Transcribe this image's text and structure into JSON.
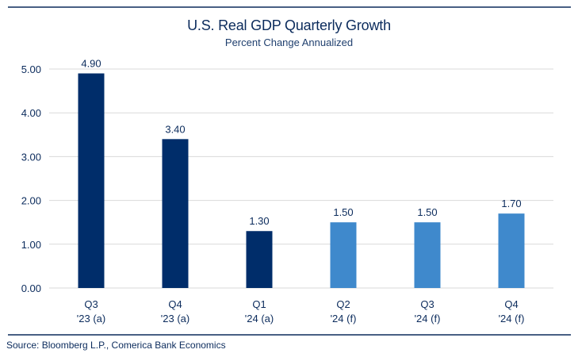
{
  "chart_data": {
    "type": "bar",
    "title": "U.S. Real GDP Quarterly Growth",
    "subtitle": "Percent Change Annualized",
    "categories": [
      [
        "Q3",
        "'23 (a)"
      ],
      [
        "Q4",
        "'23 (a)"
      ],
      [
        "Q1",
        "'24 (a)"
      ],
      [
        "Q2",
        "'24 (f)"
      ],
      [
        "Q3",
        "'24 (f)"
      ],
      [
        "Q4",
        "'24 (f)"
      ]
    ],
    "values": [
      4.9,
      3.4,
      1.3,
      1.5,
      1.5,
      1.7
    ],
    "data_labels": [
      "4.90",
      "3.40",
      "1.30",
      "1.50",
      "1.50",
      "1.70"
    ],
    "bar_types": [
      "actual",
      "actual",
      "actual",
      "forecast",
      "forecast",
      "forecast"
    ],
    "colors": {
      "actual": "#002d6a",
      "forecast": "#3f89cc",
      "grid": "#d9d9d9",
      "text": "#0b2b5c",
      "rule": "#0b2b5c"
    },
    "ylim": [
      0,
      5
    ],
    "yticks": [
      "0.00",
      "1.00",
      "2.00",
      "3.00",
      "4.00",
      "5.00"
    ],
    "grid": true,
    "legend": "none",
    "xlabel": "",
    "ylabel": ""
  },
  "source": "Source: Bloomberg L.P., Comerica Bank Economics"
}
